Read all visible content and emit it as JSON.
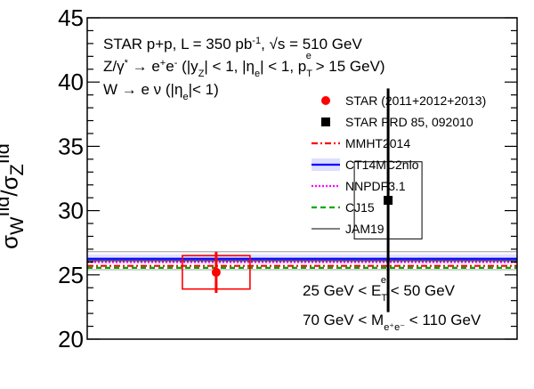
{
  "chart_data": {
    "type": "scatter",
    "ylabel_html": "σ<sub>W</sub><sup>fid</sup>/σ<sub>Z</sub><sup>fid</sup>",
    "ylim": [
      20,
      45
    ],
    "yticks": [
      "20",
      "25",
      "30",
      "35",
      "40",
      "45"
    ],
    "annotations": {
      "line1": "STAR p+p, L = 350 pb⁻¹, √s = 510 GeV",
      "line2": "Z/γ* → e⁺e⁻ (|y_Z| < 1, |η_e| < 1, p_T^e > 15 GeV)",
      "line3": "W → e ν (|η_e| < 1)",
      "cut1": "25 GeV < E_T^e < 50 GeV",
      "cut2": "70 GeV < M_e⁺e⁻ < 110 GeV"
    },
    "series": [
      {
        "name": "STAR (2011+2012+2013)",
        "type": "point",
        "x": 0.3,
        "y": 25.2,
        "stat_err": 1.6,
        "sys_err": 1.3,
        "color": "#ff0000",
        "marker": "circle"
      },
      {
        "name": "STAR PRD 85, 092010",
        "type": "point",
        "x": 0.7,
        "y": 30.8,
        "stat_err": 8.7,
        "sys_err": 3.0,
        "color": "#000000",
        "marker": "square"
      },
      {
        "name": "MMHT2014",
        "type": "band",
        "y": 25.7,
        "err": 0.3,
        "color": "#ff0000",
        "style": "dashdot"
      },
      {
        "name": "CT14MC2nlo",
        "type": "band",
        "y": 26.25,
        "err": 0.35,
        "color": "#0000ff",
        "style": "solid-hatched"
      },
      {
        "name": "NNPDF3.1",
        "type": "band",
        "y": 26.0,
        "err": 0.2,
        "color": "#ff00ff",
        "style": "dotted"
      },
      {
        "name": "CJ15",
        "type": "band",
        "y": 25.55,
        "err": 0.2,
        "color": "#00aa00",
        "style": "dashed"
      },
      {
        "name": "JAM19",
        "type": "band",
        "y": 26.1,
        "err": 0.7,
        "color": "#000000",
        "style": "thin"
      }
    ],
    "legend_placement": "top-right",
    "grid": false
  }
}
